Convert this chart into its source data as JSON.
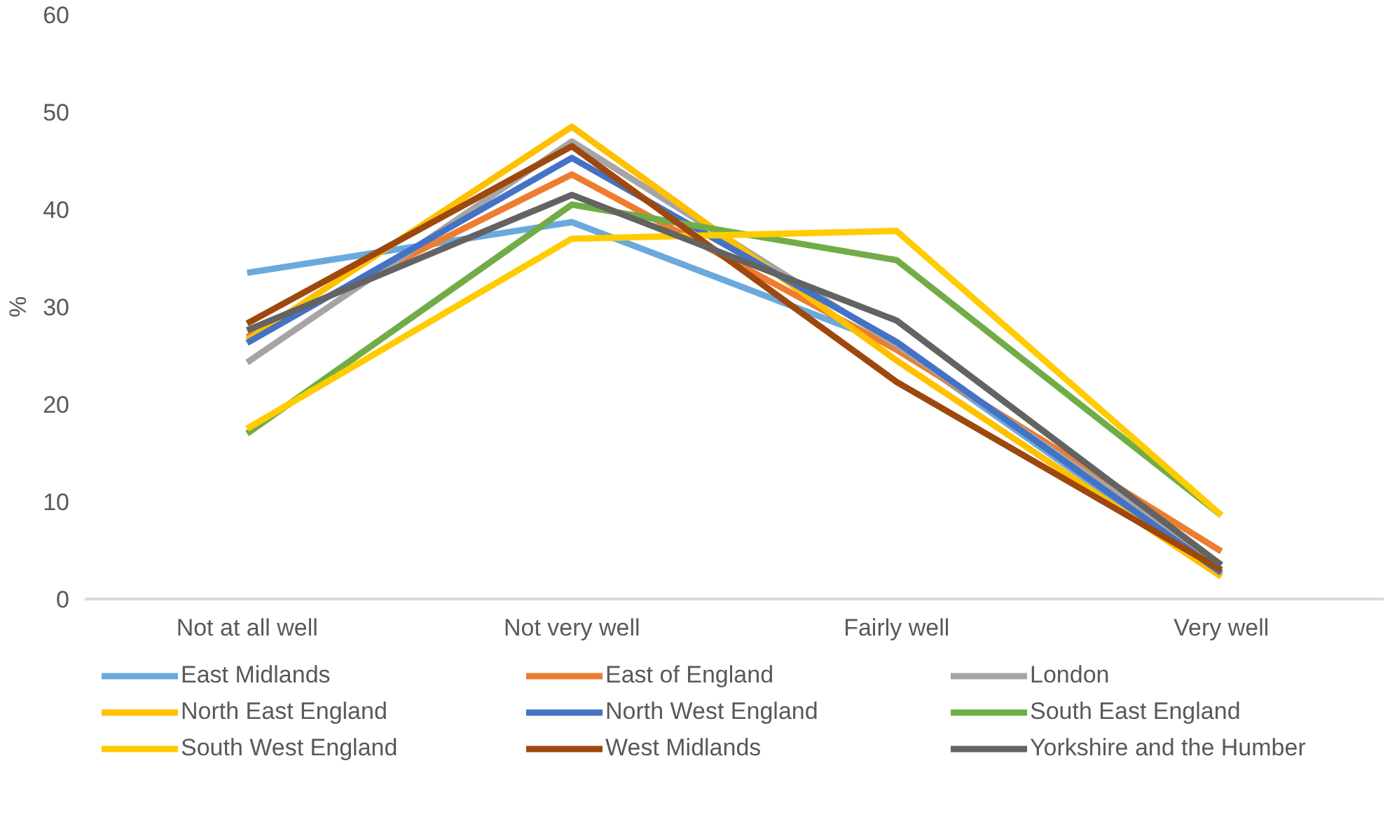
{
  "chart_data": {
    "type": "line",
    "ylabel": "%",
    "categories": [
      "Not at all well",
      "Not very well",
      "Fairly well",
      "Very well"
    ],
    "ylim": [
      0,
      60
    ],
    "yticks": [
      0,
      10,
      20,
      30,
      40,
      50,
      60
    ],
    "grid": false,
    "legend": "bottom",
    "marker": "none",
    "line_style": "solid",
    "series": [
      {
        "name": "East Midlands",
        "color": "#6aa9dc",
        "values": [
          33.5,
          38.7,
          26.0,
          2.5
        ]
      },
      {
        "name": "East of England",
        "color": "#ed7d31",
        "values": [
          26.9,
          43.6,
          25.6,
          4.9
        ]
      },
      {
        "name": "London",
        "color": "#a5a5a5",
        "values": [
          24.3,
          47.0,
          26.1,
          3.5
        ]
      },
      {
        "name": "North East England",
        "color": "#ffc000",
        "values": [
          26.6,
          48.5,
          24.5,
          2.3
        ]
      },
      {
        "name": "North West England",
        "color": "#4472c4",
        "values": [
          26.3,
          45.3,
          26.4,
          2.7
        ]
      },
      {
        "name": "South East England",
        "color": "#70ad47",
        "values": [
          17.0,
          40.5,
          34.8,
          8.6
        ]
      },
      {
        "name": "South West England",
        "color": "#ffcc00",
        "values": [
          17.5,
          37.0,
          37.8,
          8.6
        ]
      },
      {
        "name": "West Midlands",
        "color": "#9e480e",
        "values": [
          28.3,
          46.5,
          22.3,
          3.0
        ]
      },
      {
        "name": "Yorkshire and the Humber",
        "color": "#636363",
        "values": [
          27.6,
          41.5,
          28.6,
          3.5
        ]
      }
    ]
  }
}
